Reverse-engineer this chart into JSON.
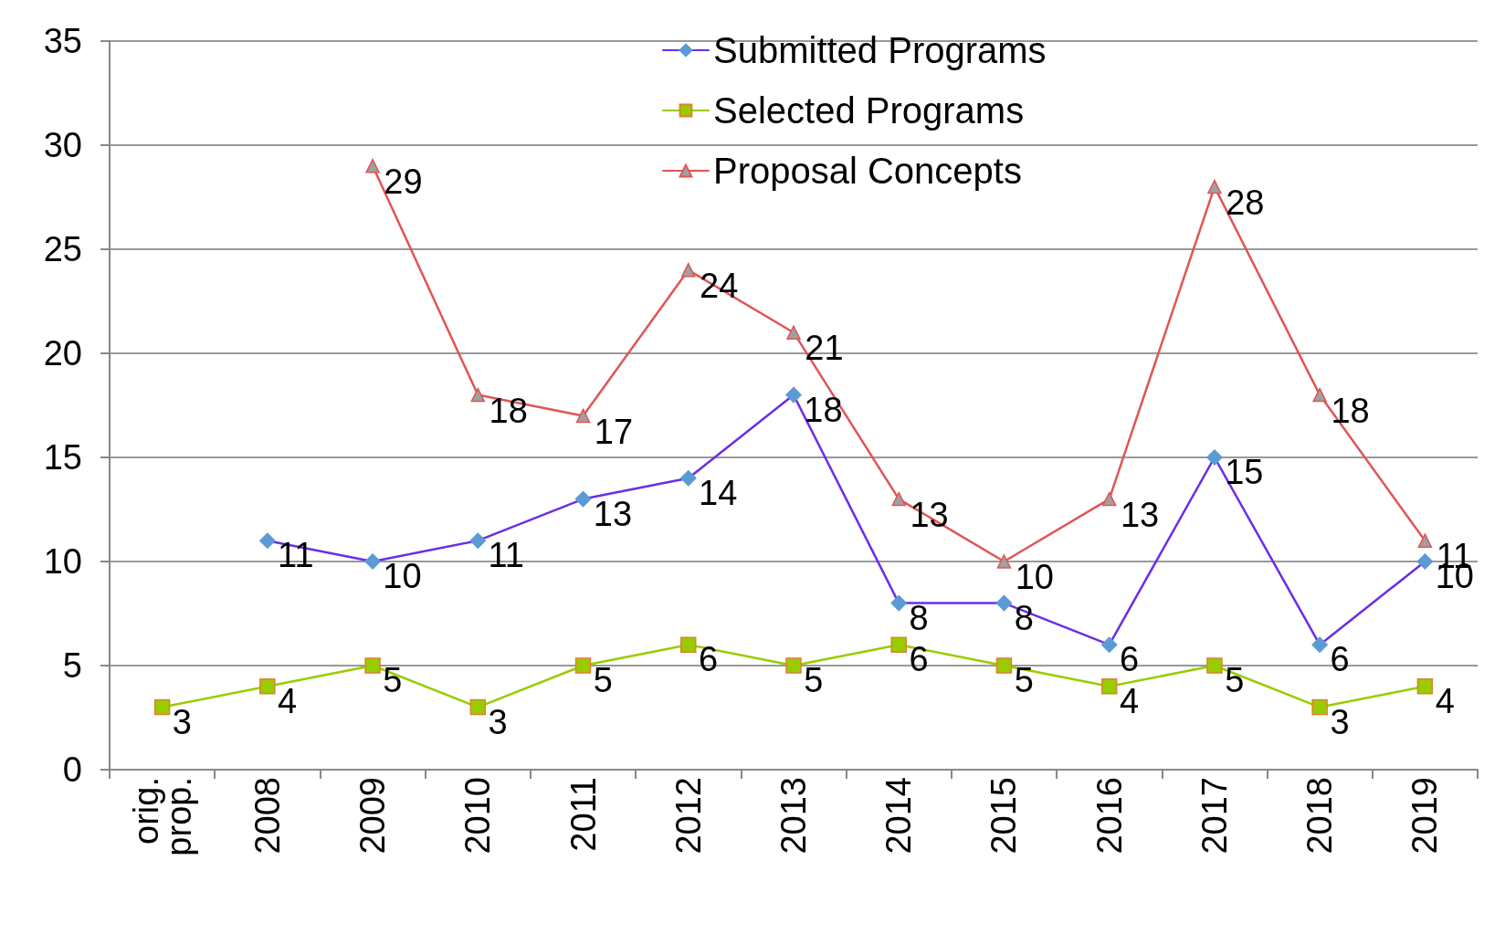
{
  "chart_data": {
    "type": "line",
    "categories": [
      "orig.\nprop.",
      "2008",
      "2009",
      "2010",
      "2011",
      "2012",
      "2013",
      "2014",
      "2015",
      "2016",
      "2017",
      "2018",
      "2019"
    ],
    "series": [
      {
        "name": "Submitted Programs",
        "color": "#6a2ee8",
        "marker": "diamond",
        "values": [
          null,
          11,
          10,
          11,
          13,
          14,
          18,
          8,
          8,
          6,
          15,
          6,
          10
        ]
      },
      {
        "name": "Selected Programs",
        "color": "#99cc00",
        "marker": "square",
        "values": [
          3,
          4,
          5,
          3,
          5,
          6,
          5,
          6,
          5,
          4,
          5,
          3,
          4
        ]
      },
      {
        "name": "Proposal Concepts",
        "color": "#e05555",
        "marker": "triangle",
        "values": [
          null,
          null,
          29,
          18,
          17,
          24,
          21,
          13,
          10,
          13,
          28,
          18,
          11
        ]
      }
    ],
    "ylim": [
      0,
      35
    ],
    "yticks": [
      0,
      5,
      10,
      15,
      20,
      25,
      30,
      35
    ],
    "grid": "y",
    "legend": "top",
    "data_labels": true,
    "line_style": "solid"
  }
}
